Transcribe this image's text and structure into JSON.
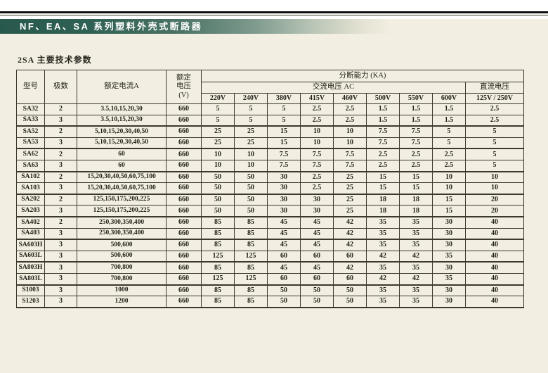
{
  "page": {
    "banner_title": "NF、EA、SA 系列塑料外壳式断路器",
    "section_title": "2SA 主要技术参数"
  },
  "colors": {
    "banner_green": "#29594d",
    "page_background": "#f2efe2",
    "table_border": "#3c382c",
    "banner_text": "#ffffff"
  },
  "table": {
    "headers": {
      "model": "型号",
      "poles": "极数",
      "rated_current": "额定电流A",
      "rated_voltage_lines": [
        "额定",
        "电压",
        "(V)"
      ],
      "breaking_capacity": "分断能力  (KA)",
      "ac_group": "交流电压  AC",
      "dc_group": "直流电压",
      "ac_columns": [
        "220V",
        "240V",
        "380V",
        "415V",
        "460V",
        "500V",
        "550V",
        "600V"
      ],
      "dc_column": "125V / 250V"
    },
    "rows": [
      {
        "model": "SA32",
        "poles": "2",
        "current": "3.5,10,15,20,30",
        "voltage": "660",
        "values": [
          "5",
          "5",
          "5",
          "2.5",
          "2.5",
          "1.5",
          "1.5",
          "1.5",
          "2.5"
        ]
      },
      {
        "model": "SA33",
        "poles": "3",
        "current": "3.5,10,15,20,30",
        "voltage": "660",
        "values": [
          "5",
          "5",
          "5",
          "2.5",
          "2.5",
          "1.5",
          "1.5",
          "1.5",
          "2.5"
        ]
      },
      {
        "model": "SA52",
        "poles": "2",
        "current": "5,10,15,20,30,40,50",
        "voltage": "660",
        "values": [
          "25",
          "25",
          "15",
          "10",
          "10",
          "7.5",
          "7.5",
          "5",
          "5"
        ]
      },
      {
        "model": "SA53",
        "poles": "3",
        "current": "5,10,15,20,30,40,50",
        "voltage": "660",
        "values": [
          "25",
          "25",
          "15",
          "10",
          "10",
          "7.5",
          "7.5",
          "5",
          "5"
        ]
      },
      {
        "model": "SA62",
        "poles": "2",
        "current": "60",
        "voltage": "660",
        "values": [
          "10",
          "10",
          "7.5",
          "7.5",
          "7.5",
          "2.5",
          "2.5",
          "2.5",
          "5"
        ]
      },
      {
        "model": "SA63",
        "poles": "3",
        "current": "60",
        "voltage": "660",
        "values": [
          "10",
          "10",
          "7.5",
          "7.5",
          "7.5",
          "2.5",
          "2.5",
          "2.5",
          "5"
        ]
      },
      {
        "model": "SA102",
        "poles": "2",
        "current": "15,20,30,40,50,60,75,100",
        "voltage": "660",
        "values": [
          "50",
          "50",
          "30",
          "2.5",
          "25",
          "15",
          "15",
          "10",
          "10"
        ]
      },
      {
        "model": "SA103",
        "poles": "3",
        "current": "15,20,30,40,50,60,75,100",
        "voltage": "660",
        "values": [
          "50",
          "50",
          "30",
          "2.5",
          "25",
          "15",
          "15",
          "10",
          "10"
        ]
      },
      {
        "model": "SA202",
        "poles": "2",
        "current": "125,150,175,200,225",
        "voltage": "660",
        "values": [
          "50",
          "50",
          "30",
          "30",
          "25",
          "18",
          "18",
          "15",
          "20"
        ]
      },
      {
        "model": "SA203",
        "poles": "3",
        "current": "125,150,175,200,225",
        "voltage": "660",
        "values": [
          "50",
          "50",
          "30",
          "30",
          "25",
          "18",
          "18",
          "15",
          "20"
        ]
      },
      {
        "model": "SA402",
        "poles": "2",
        "current": "250,300,350,400",
        "voltage": "660",
        "values": [
          "85",
          "85",
          "45",
          "45",
          "42",
          "35",
          "35",
          "30",
          "40"
        ]
      },
      {
        "model": "SA403",
        "poles": "3",
        "current": "250,300,350,400",
        "voltage": "660",
        "values": [
          "85",
          "85",
          "45",
          "45",
          "42",
          "35",
          "35",
          "30",
          "40"
        ]
      },
      {
        "model": "SA603H",
        "poles": "3",
        "current": "500,600",
        "voltage": "660",
        "values": [
          "85",
          "85",
          "45",
          "45",
          "42",
          "35",
          "35",
          "30",
          "40"
        ]
      },
      {
        "model": "SA603L",
        "poles": "3",
        "current": "500,600",
        "voltage": "660",
        "values": [
          "125",
          "125",
          "60",
          "60",
          "60",
          "42",
          "42",
          "35",
          "40"
        ]
      },
      {
        "model": "SA803H",
        "poles": "3",
        "current": "700,800",
        "voltage": "660",
        "values": [
          "85",
          "85",
          "45",
          "45",
          "42",
          "35",
          "35",
          "30",
          "40"
        ]
      },
      {
        "model": "SA803L",
        "poles": "3",
        "current": "700,800",
        "voltage": "660",
        "values": [
          "125",
          "125",
          "60",
          "60",
          "60",
          "42",
          "42",
          "35",
          "40"
        ]
      },
      {
        "model": "S1003",
        "poles": "3",
        "current": "1000",
        "voltage": "660",
        "values": [
          "85",
          "85",
          "50",
          "50",
          "50",
          "35",
          "35",
          "30",
          "40"
        ]
      },
      {
        "model": "S1203",
        "poles": "3",
        "current": "1200",
        "voltage": "660",
        "values": [
          "85",
          "85",
          "50",
          "50",
          "50",
          "35",
          "35",
          "30",
          "40"
        ]
      }
    ]
  }
}
